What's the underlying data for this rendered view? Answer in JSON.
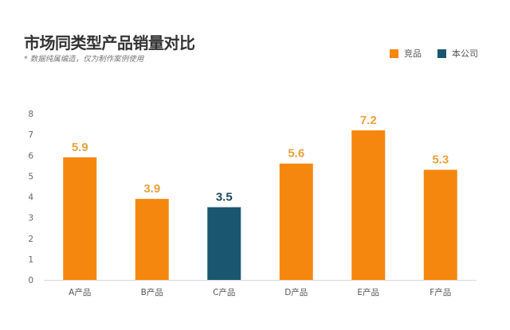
{
  "chart_data": {
    "type": "bar",
    "title": "市场同类型产品销量对比",
    "subtitle": "* 数据纯属编造，仅为制作案例使用",
    "categories": [
      "A产品",
      "B产品",
      "C产品",
      "D产品",
      "E产品",
      "F产品"
    ],
    "values": [
      5.9,
      3.9,
      3.5,
      5.6,
      7.2,
      5.3
    ],
    "value_labels": [
      "5.9",
      "3.9",
      "3.5",
      "5.6",
      "7.2",
      "5.3"
    ],
    "series_of_bar": [
      "竞品",
      "竞品",
      "本公司",
      "竞品",
      "竞品",
      "竞品"
    ],
    "legend": [
      {
        "name": "竞品",
        "color": "#f5870f"
      },
      {
        "name": "本公司",
        "color": "#1b5670"
      }
    ],
    "label_colors": {
      "竞品": "#e8a23c",
      "本公司": "#1b4a60"
    },
    "yticks": [
      "0",
      "1",
      "2",
      "3",
      "4",
      "5",
      "6",
      "7",
      "8"
    ],
    "ylim": [
      0,
      8
    ],
    "xlabel": "",
    "ylabel": "",
    "grid": false,
    "legend_position": "top-right"
  }
}
